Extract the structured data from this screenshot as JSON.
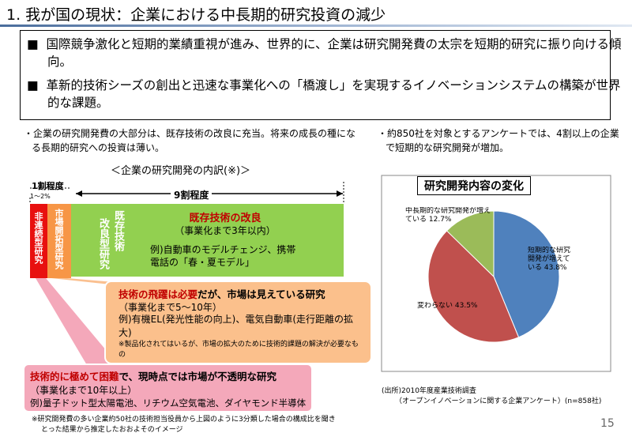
{
  "title": "1. 我が国の現状：企業における中長期的研究投資の減少",
  "summary": [
    "国際競争激化と短期的業績重視が進み、世界的に、企業は研究開発費の太宗を短期的研究に振り向ける傾向。",
    "革新的技術シーズの創出と迅速な事業化への「橋渡し」を実現するイノベーションシステムの構築が世界的な課題。"
  ],
  "left": {
    "note": "・企業の研究開発費の大部分は、既存技術の改良に充当。将来の成長の種になる長期的研究への投資は薄い。",
    "subtitle": "＜企業の研究開発の内訳(※)＞",
    "label_small": "1割程度",
    "label_tiny": "1～2%",
    "label_large": "9割程度",
    "col_red": "非連続型研究",
    "col_orange": "市場開拓型研究",
    "col_improve": "改良型研究",
    "col_existing": "既存技術",
    "green_title": "既存技術の改良",
    "green_sub": "（事業化まで3年以内）",
    "green_example": "例)自動車のモデルチェンジ、携帯電話の「春・夏モデル」",
    "orange_title_red": "技術の飛躍は必要",
    "orange_title": "だが、市場は見えている研究",
    "orange_sub": "（事業化まで5～10年）",
    "orange_example": "例)有機EL(発光性能の向上)、電気自動車(走行距離の拡大)",
    "orange_note": "※製品化されてはいるが、市場の拡大のために技術的課題の解決が必要なもの",
    "pink_title_red": "技術的に極めて困難",
    "pink_title": "で、現時点では市場が不透明な研究",
    "pink_sub": "（事業化まで10年以上）",
    "pink_example": "例)量子ドット型太陽電池、リチウム空気電池、ダイヤモンド半導体",
    "footnote": "※研究開発費の多い企業約50社の技術担当役員から上図のように3分類した場合の構成比を聞きとった結果から推定したおおよそのイメージ"
  },
  "right": {
    "note": "・約850社を対象とするアンケートでは、4割以上の企業で短期的な研究開発が増加。",
    "source": "(出所)2010年度産業技術調査",
    "source_detail": "（オープンイノベーションに関する企業アンケート）(n=858社)"
  },
  "chart_data": {
    "type": "pie",
    "title": "研究開発内容の変化",
    "categories": [
      "短期的な研究開発が増えている",
      "変わらない",
      "中長期的な研究開発が増えている"
    ],
    "values": [
      43.8,
      43.5,
      12.7
    ],
    "value_labels": [
      "43.8%",
      "43.5%",
      "12.7%"
    ],
    "colors": [
      "#4f81bd",
      "#c0504d",
      "#9bbb59"
    ]
  },
  "page_number": "15"
}
